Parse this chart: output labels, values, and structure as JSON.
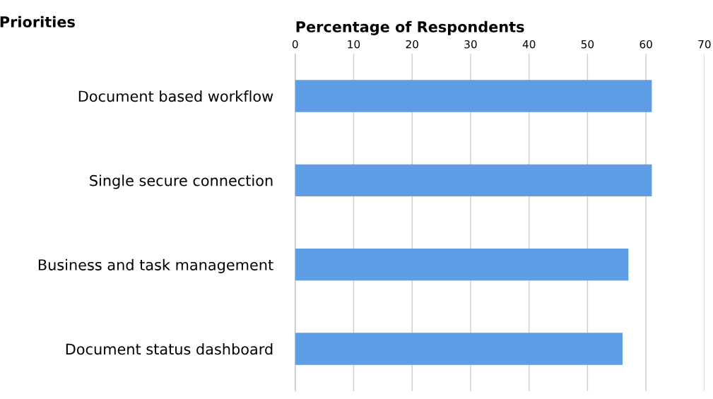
{
  "chart_data": {
    "type": "bar",
    "orientation": "horizontal",
    "xlabel": "Percentage of Respondents",
    "ylabel": "Priorities",
    "categories": [
      "Document based workflow",
      "Single secure connection",
      "Business and task management",
      "Document status dashboard"
    ],
    "values": [
      61,
      61,
      57,
      56
    ],
    "color": "#5f9de6",
    "xlim": [
      0,
      70
    ],
    "xticks": [
      0,
      10,
      20,
      30,
      40,
      50,
      60,
      70
    ],
    "grid": "x"
  }
}
